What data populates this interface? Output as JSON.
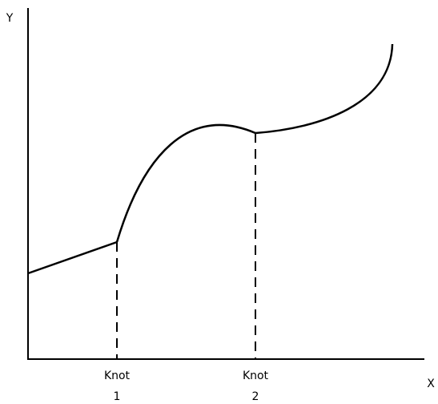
{
  "axes": {
    "y_label": "Y",
    "x_label": "X"
  },
  "knots": [
    {
      "label": "Knot",
      "number": "1"
    },
    {
      "label": "Knot",
      "number": "2"
    }
  ]
}
